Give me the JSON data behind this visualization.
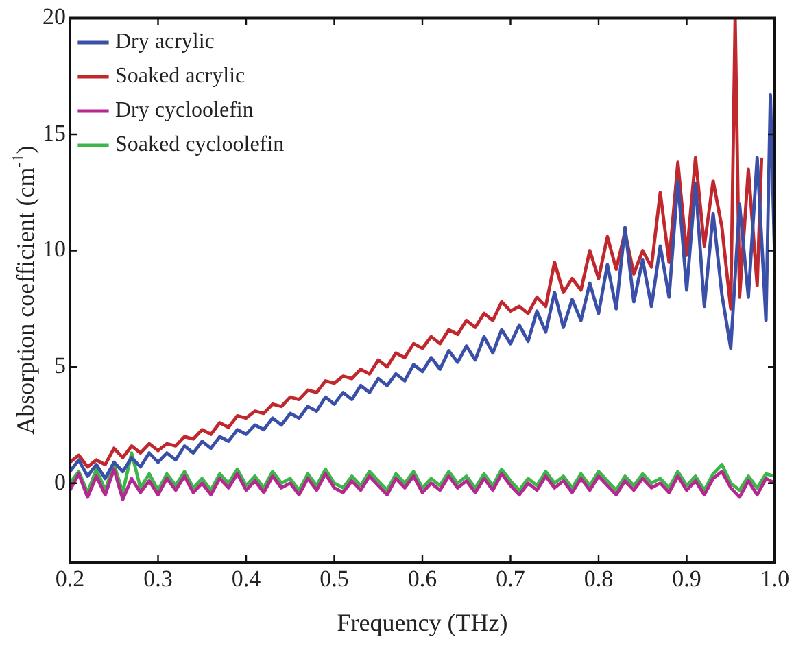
{
  "chart_data": {
    "type": "line",
    "xlabel": "Frequency (THz)",
    "ylabel": "Absorption coefficient (cm$^{-1}$)",
    "xlim": [
      0.2,
      1.0
    ],
    "xticks": [
      0.2,
      0.3,
      0.4,
      0.5,
      0.6,
      0.7,
      0.8,
      0.9,
      {
        "value": 1,
        "label": "1.0"
      }
    ],
    "ylim": [
      -3.4,
      20
    ],
    "yticks": [
      0,
      5,
      10,
      15,
      20
    ],
    "grid": false,
    "legend": "top left",
    "marker": "none",
    "line_style": "solid",
    "x": [
      0.2,
      0.21,
      0.22,
      0.23,
      0.24,
      0.25,
      0.26,
      0.27,
      0.28,
      0.29,
      0.3,
      0.31,
      0.32,
      0.33,
      0.34,
      0.35,
      0.36,
      0.37,
      0.38,
      0.39,
      0.4,
      0.41,
      0.42,
      0.43,
      0.44,
      0.45,
      0.46,
      0.47,
      0.48,
      0.49,
      0.5,
      0.51,
      0.52,
      0.53,
      0.54,
      0.55,
      0.56,
      0.57,
      0.58,
      0.59,
      0.6,
      0.61,
      0.62,
      0.63,
      0.64,
      0.65,
      0.66,
      0.67,
      0.68,
      0.69,
      0.7,
      0.71,
      0.72,
      0.73,
      0.74,
      0.75,
      0.76,
      0.77,
      0.78,
      0.79,
      0.8,
      0.81,
      0.82,
      0.83,
      0.84,
      0.85,
      0.86,
      0.87,
      0.88,
      0.89,
      0.9,
      0.91,
      0.92,
      0.93,
      0.94,
      0.95,
      0.96,
      0.97,
      0.98,
      0.99,
      1.0
    ],
    "series": [
      {
        "name": "Dry acrylic",
        "color": "#3a4fa8",
        "x": [
          0.2,
          0.21,
          0.22,
          0.23,
          0.24,
          0.25,
          0.26,
          0.27,
          0.28,
          0.29,
          0.3,
          0.31,
          0.32,
          0.33,
          0.34,
          0.35,
          0.36,
          0.37,
          0.38,
          0.39,
          0.4,
          0.41,
          0.42,
          0.43,
          0.44,
          0.45,
          0.46,
          0.47,
          0.48,
          0.49,
          0.5,
          0.51,
          0.52,
          0.53,
          0.54,
          0.55,
          0.56,
          0.57,
          0.58,
          0.59,
          0.6,
          0.61,
          0.62,
          0.63,
          0.64,
          0.65,
          0.66,
          0.67,
          0.68,
          0.69,
          0.7,
          0.71,
          0.72,
          0.73,
          0.74,
          0.75,
          0.76,
          0.77,
          0.78,
          0.79,
          0.8,
          0.81,
          0.82,
          0.83,
          0.84,
          0.85,
          0.86,
          0.87,
          0.88,
          0.89,
          0.9,
          0.91,
          0.92,
          0.93,
          0.94,
          0.95,
          0.96,
          0.97,
          0.98,
          0.99,
          0.995,
          1.0
        ],
        "values": [
          0.5,
          1.0,
          0.3,
          0.8,
          0.2,
          0.9,
          0.5,
          1.1,
          0.7,
          1.3,
          0.9,
          1.3,
          1.0,
          1.6,
          1.3,
          1.8,
          1.5,
          2.0,
          1.8,
          2.3,
          2.1,
          2.5,
          2.3,
          2.8,
          2.5,
          3.0,
          2.8,
          3.3,
          3.1,
          3.7,
          3.4,
          3.9,
          3.6,
          4.2,
          3.9,
          4.5,
          4.2,
          4.7,
          4.4,
          5.1,
          4.8,
          5.4,
          4.9,
          5.7,
          5.2,
          5.9,
          5.3,
          6.3,
          5.6,
          6.6,
          6.0,
          6.8,
          6.1,
          7.4,
          6.5,
          8.2,
          6.7,
          7.9,
          7.0,
          8.6,
          7.3,
          9.4,
          7.5,
          11.0,
          7.8,
          9.6,
          7.6,
          10.2,
          8.0,
          13.0,
          8.3,
          12.9,
          7.6,
          11.6,
          8.1,
          5.8,
          12.0,
          8.0,
          14.0,
          7.0,
          16.7,
          9.5
        ]
      },
      {
        "name": "Soaked acrylic",
        "color": "#c0282d",
        "x": [
          0.2,
          0.21,
          0.22,
          0.23,
          0.24,
          0.25,
          0.26,
          0.27,
          0.28,
          0.29,
          0.3,
          0.31,
          0.32,
          0.33,
          0.34,
          0.35,
          0.36,
          0.37,
          0.38,
          0.39,
          0.4,
          0.41,
          0.42,
          0.43,
          0.44,
          0.45,
          0.46,
          0.47,
          0.48,
          0.49,
          0.5,
          0.51,
          0.52,
          0.53,
          0.54,
          0.55,
          0.56,
          0.57,
          0.58,
          0.59,
          0.6,
          0.61,
          0.62,
          0.63,
          0.64,
          0.65,
          0.66,
          0.67,
          0.68,
          0.69,
          0.7,
          0.71,
          0.72,
          0.73,
          0.74,
          0.75,
          0.76,
          0.77,
          0.78,
          0.79,
          0.8,
          0.81,
          0.82,
          0.83,
          0.84,
          0.85,
          0.86,
          0.87,
          0.88,
          0.89,
          0.9,
          0.91,
          0.92,
          0.93,
          0.94,
          0.95,
          0.955,
          0.96,
          0.97,
          0.98,
          0.985
        ],
        "values": [
          0.9,
          1.2,
          0.7,
          1.0,
          0.8,
          1.5,
          1.1,
          1.6,
          1.3,
          1.7,
          1.4,
          1.7,
          1.6,
          2.0,
          1.9,
          2.3,
          2.1,
          2.6,
          2.4,
          2.9,
          2.8,
          3.1,
          3.0,
          3.4,
          3.3,
          3.7,
          3.6,
          4.0,
          3.9,
          4.4,
          4.3,
          4.6,
          4.5,
          4.9,
          4.7,
          5.3,
          5.0,
          5.6,
          5.4,
          6.0,
          5.8,
          6.3,
          6.0,
          6.6,
          6.4,
          7.0,
          6.7,
          7.3,
          7.0,
          7.8,
          7.4,
          7.6,
          7.3,
          8.0,
          7.6,
          9.5,
          8.2,
          8.8,
          8.3,
          10.0,
          8.8,
          10.6,
          9.2,
          10.8,
          9.0,
          10.0,
          9.3,
          12.5,
          9.5,
          13.8,
          9.8,
          14.0,
          10.2,
          13.0,
          11.0,
          7.5,
          20,
          8.0,
          13.5,
          8.5,
          14.0
        ]
      },
      {
        "name": "Dry cycloolefin",
        "color": "#b5298f",
        "values": [
          -0.3,
          0.4,
          -0.6,
          0.3,
          -0.5,
          0.6,
          -0.7,
          0.2,
          -0.4,
          0.1,
          -0.5,
          0.2,
          -0.3,
          0.3,
          -0.4,
          0.0,
          -0.5,
          0.2,
          -0.2,
          0.4,
          -0.3,
          0.1,
          -0.4,
          0.3,
          -0.2,
          0.0,
          -0.5,
          0.2,
          -0.3,
          0.4,
          -0.2,
          -0.4,
          0.1,
          -0.3,
          0.3,
          -0.1,
          -0.5,
          0.2,
          -0.2,
          0.3,
          -0.4,
          0.0,
          -0.3,
          0.3,
          -0.2,
          0.1,
          -0.4,
          0.2,
          -0.3,
          0.4,
          -0.1,
          -0.5,
          0.0,
          -0.3,
          0.3,
          -0.2,
          0.1,
          -0.4,
          0.2,
          -0.3,
          0.3,
          -0.1,
          -0.5,
          0.1,
          -0.3,
          0.2,
          -0.2,
          0.0,
          -0.4,
          0.3,
          -0.3,
          0.1,
          -0.5,
          0.2,
          0.5,
          -0.2,
          -0.6,
          0.1,
          -0.5,
          0.2,
          0.0
        ]
      },
      {
        "name": "Soaked cycloolefin",
        "color": "#3cb54a",
        "values": [
          0.0,
          0.5,
          -0.4,
          0.6,
          -0.3,
          0.8,
          -0.4,
          1.3,
          -0.2,
          0.4,
          -0.3,
          0.4,
          -0.1,
          0.5,
          -0.2,
          0.2,
          -0.3,
          0.4,
          0.0,
          0.6,
          -0.1,
          0.3,
          -0.2,
          0.5,
          0.0,
          0.2,
          -0.3,
          0.4,
          -0.1,
          0.6,
          0.0,
          -0.2,
          0.3,
          -0.1,
          0.5,
          0.1,
          -0.3,
          0.4,
          0.0,
          0.5,
          -0.2,
          0.2,
          -0.1,
          0.5,
          0.0,
          0.3,
          -0.2,
          0.4,
          -0.1,
          0.6,
          0.1,
          -0.3,
          0.2,
          -0.1,
          0.5,
          0.0,
          0.3,
          -0.2,
          0.4,
          -0.1,
          0.5,
          0.1,
          -0.3,
          0.3,
          -0.1,
          0.4,
          0.0,
          0.2,
          -0.2,
          0.5,
          -0.1,
          0.3,
          -0.3,
          0.4,
          0.8,
          0.0,
          -0.3,
          0.3,
          -0.2,
          0.4,
          0.3
        ]
      }
    ]
  }
}
